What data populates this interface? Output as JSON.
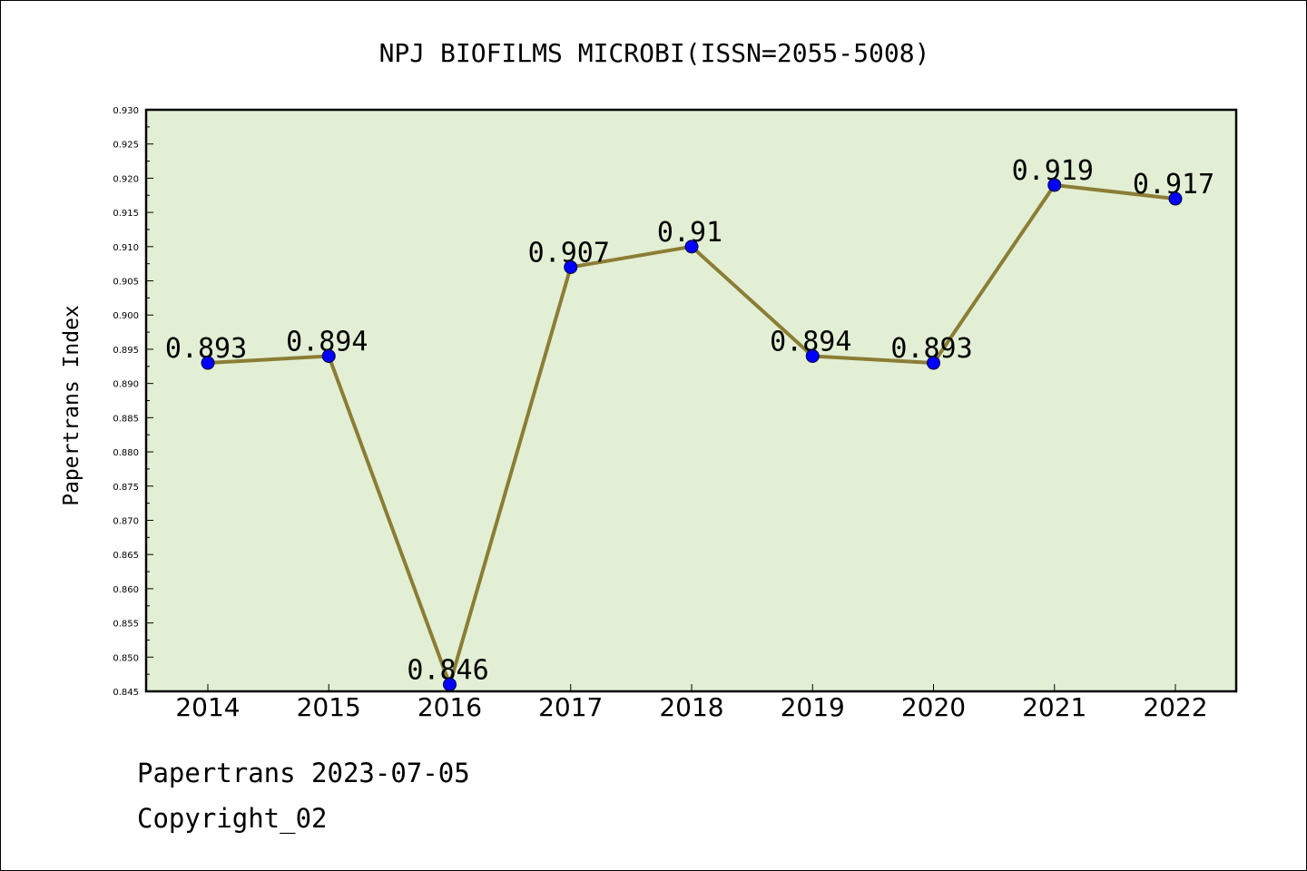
{
  "chart_data": {
    "type": "line",
    "title": "NPJ BIOFILMS MICROBI(ISSN=2055-5008)",
    "xlabel": "",
    "ylabel": "Papertrans Index",
    "categories": [
      "2014",
      "2015",
      "2016",
      "2017",
      "2018",
      "2019",
      "2020",
      "2021",
      "2022"
    ],
    "series": [
      {
        "values": [
          0.893,
          0.894,
          0.846,
          0.907,
          0.91,
          0.894,
          0.893,
          0.919,
          0.917
        ],
        "labels": [
          "0.893",
          "0.894",
          "0.846",
          "0.907",
          "0.91",
          "0.894",
          "0.893",
          "0.919",
          "0.917"
        ]
      }
    ],
    "yticks": [
      "0.845",
      "0.850",
      "0.855",
      "0.860",
      "0.865",
      "0.870",
      "0.875",
      "0.880",
      "0.885",
      "0.890",
      "0.895",
      "0.900",
      "0.905",
      "0.910",
      "0.915",
      "0.920",
      "0.925",
      "0.930"
    ],
    "ylim": [
      0.845,
      0.93
    ],
    "grid": false,
    "legend": "none",
    "colors": {
      "plot_background": "#e2efd4",
      "line": "#8b7d35",
      "marker": "#0000ff"
    }
  },
  "footer": {
    "line1": "Papertrans 2023-07-05",
    "line2": "Copyright_02"
  }
}
